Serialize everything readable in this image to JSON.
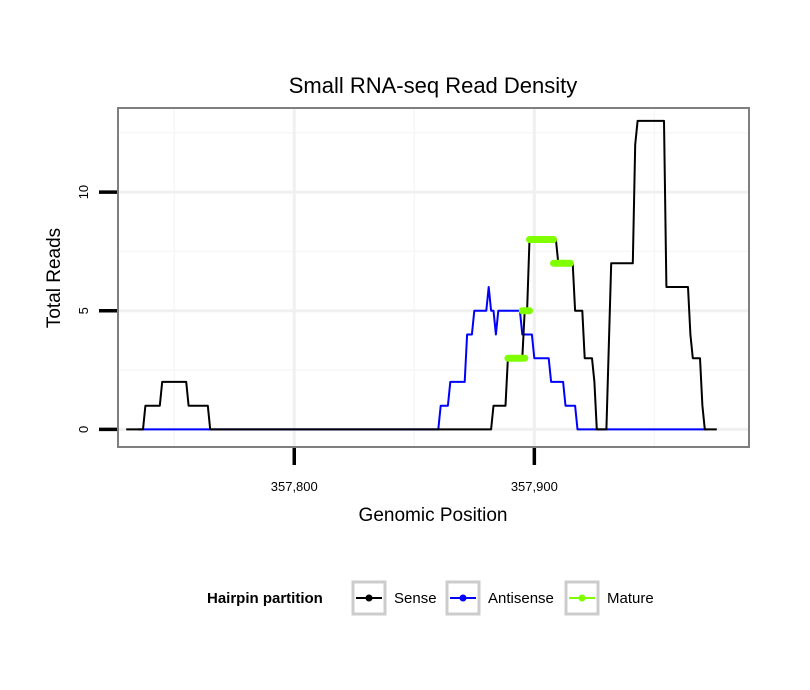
{
  "chart_data": {
    "type": "line",
    "title": "Small RNA-seq Read Density",
    "xlabel": "Genomic Position",
    "ylabel": "Total Reads",
    "xlim": [
      357727,
      357989
    ],
    "ylim": [
      -0.7,
      13.5
    ],
    "x_ticks": [
      357800,
      357900
    ],
    "x_tick_labels": [
      "357,800",
      "357,900"
    ],
    "y_ticks": [
      0,
      5,
      10
    ],
    "y_tick_labels": [
      "0",
      "5",
      "10"
    ],
    "grid": true,
    "legend": {
      "title": "Hairpin partition",
      "position": "bottom",
      "entries": [
        "Sense",
        "Antisense",
        "Mature"
      ]
    },
    "series": [
      {
        "name": "Sense",
        "color": "#000000",
        "points": [
          [
            357730,
            0
          ],
          [
            357737,
            0
          ],
          [
            357738,
            1
          ],
          [
            357744,
            1
          ],
          [
            357745,
            2
          ],
          [
            357755,
            2
          ],
          [
            357756,
            1
          ],
          [
            357764,
            1
          ],
          [
            357765,
            0
          ],
          [
            357882,
            0
          ],
          [
            357883,
            1
          ],
          [
            357888,
            1
          ],
          [
            357889,
            3
          ],
          [
            357895,
            3
          ],
          [
            357896,
            5
          ],
          [
            357897,
            5
          ],
          [
            357898,
            8
          ],
          [
            357909,
            8
          ],
          [
            357910,
            7
          ],
          [
            357916,
            7
          ],
          [
            357917,
            5
          ],
          [
            357920,
            5
          ],
          [
            357921,
            3
          ],
          [
            357924,
            3
          ],
          [
            357925,
            2
          ],
          [
            357926,
            0
          ],
          [
            357930,
            0
          ],
          [
            357932,
            7
          ],
          [
            357941,
            7
          ],
          [
            357942,
            12
          ],
          [
            357943,
            13
          ],
          [
            357954,
            13
          ],
          [
            357955,
            6
          ],
          [
            357964,
            6
          ],
          [
            357965,
            4
          ],
          [
            357966,
            3
          ],
          [
            357969,
            3
          ],
          [
            357970,
            1
          ],
          [
            357971,
            0
          ],
          [
            357976,
            0
          ]
        ]
      },
      {
        "name": "Antisense",
        "color": "#0000ff",
        "points": [
          [
            357735,
            0
          ],
          [
            357860,
            0
          ],
          [
            357861,
            1
          ],
          [
            357864,
            1
          ],
          [
            357865,
            2
          ],
          [
            357871,
            2
          ],
          [
            357872,
            4
          ],
          [
            357874,
            4
          ],
          [
            357875,
            5
          ],
          [
            357880,
            5
          ],
          [
            357881,
            6
          ],
          [
            357882,
            5
          ],
          [
            357883,
            5
          ],
          [
            357884,
            4
          ],
          [
            357885,
            5
          ],
          [
            357894,
            5
          ],
          [
            357895,
            4
          ],
          [
            357899,
            4
          ],
          [
            357900,
            3
          ],
          [
            357906,
            3
          ],
          [
            357907,
            2
          ],
          [
            357912,
            2
          ],
          [
            357913,
            1
          ],
          [
            357917,
            1
          ],
          [
            357918,
            0
          ],
          [
            357972,
            0
          ]
        ]
      },
      {
        "name": "Mature",
        "color": "#7fff00",
        "segments": [
          {
            "x": [
              357889,
              357896
            ],
            "y": 3
          },
          {
            "x": [
              357895,
              357898
            ],
            "y": 5
          },
          {
            "x": [
              357898,
              357908
            ],
            "y": 8
          },
          {
            "x": [
              357908,
              357915
            ],
            "y": 7
          }
        ]
      }
    ]
  }
}
